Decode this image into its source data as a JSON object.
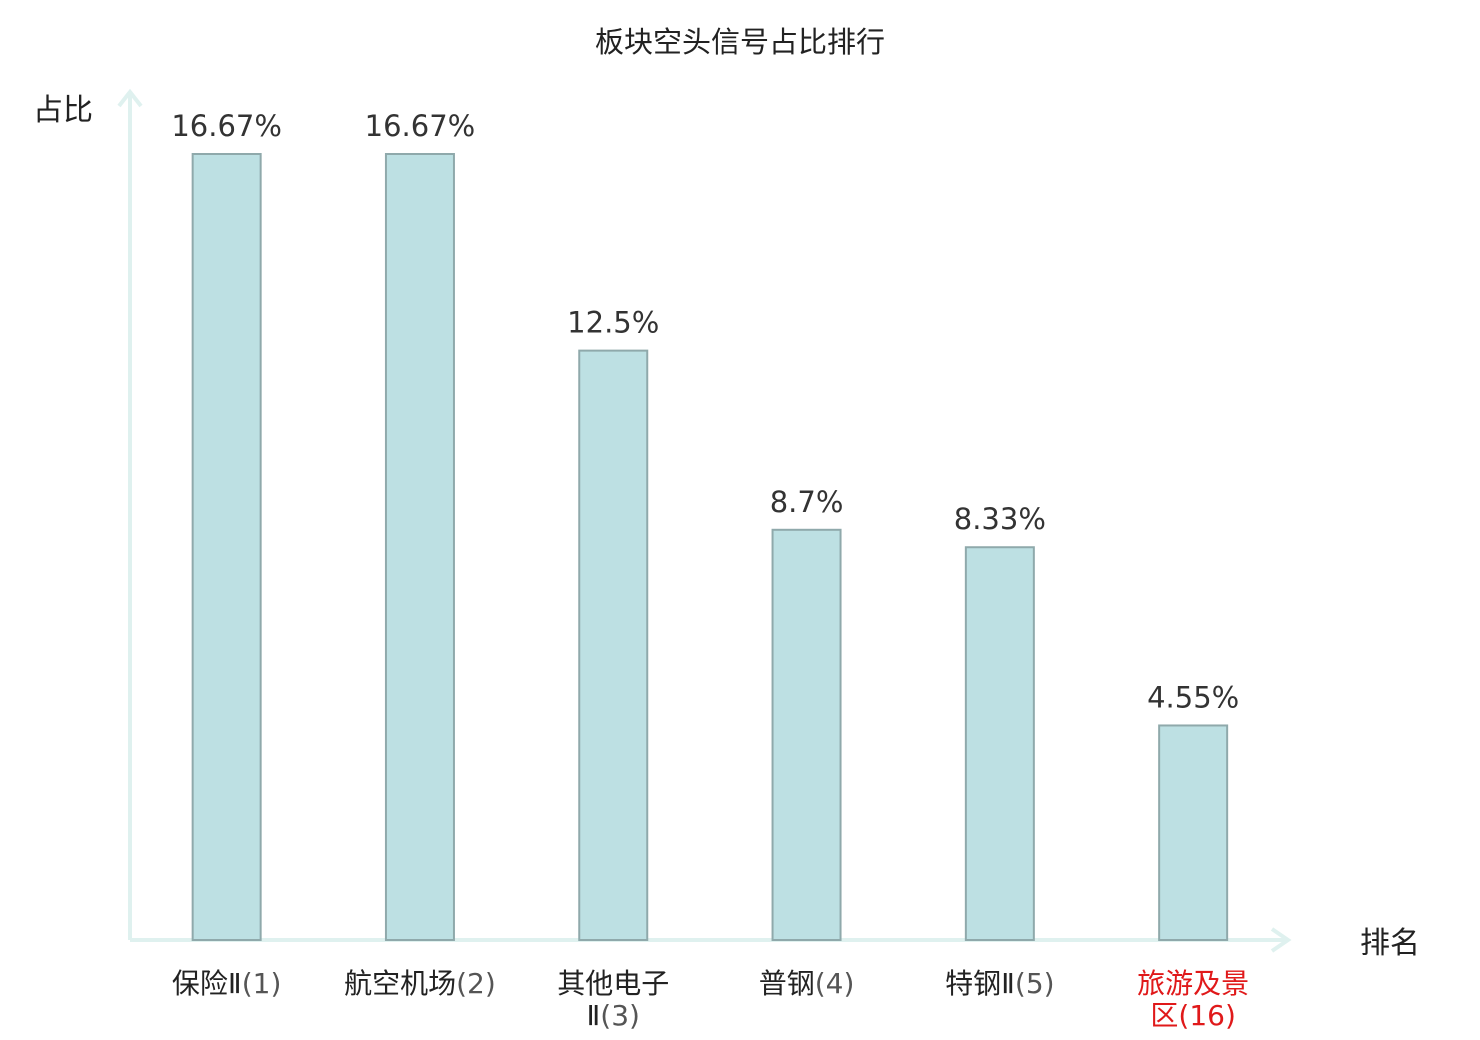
{
  "chart_data": {
    "type": "bar",
    "title": "板块空头信号占比排行",
    "ylabel": "占比",
    "xlabel": "排名",
    "categories": [
      {
        "name": "保险Ⅱ",
        "rank": "(1)",
        "lines": [
          "保险Ⅱ(1)"
        ]
      },
      {
        "name": "航空机场",
        "rank": "(2)",
        "lines": [
          "航空机场(2)"
        ]
      },
      {
        "name": "其他电子Ⅱ",
        "rank": "(3)",
        "lines": [
          "其他电子",
          "Ⅱ(3)"
        ]
      },
      {
        "name": "普钢",
        "rank": "(4)",
        "lines": [
          "普钢(4)"
        ]
      },
      {
        "name": "特钢Ⅱ",
        "rank": "(5)",
        "lines": [
          "特钢Ⅱ(5)"
        ]
      },
      {
        "name": "旅游及景区",
        "rank": "(16)",
        "lines": [
          "旅游及景",
          "区(16)"
        ],
        "highlight": true
      }
    ],
    "values": [
      16.67,
      16.67,
      12.5,
      8.7,
      8.33,
      4.55
    ],
    "value_labels": [
      "16.67%",
      "16.67%",
      "12.5%",
      "8.7%",
      "8.33%",
      "4.55%"
    ],
    "ylim": [
      0,
      16.67
    ],
    "grid": false,
    "colors": {
      "bar_fill": "#bde0e3",
      "bar_stroke": "#8fa9ab",
      "axis": "#dff1ef",
      "highlight_text": "#e0191a"
    }
  }
}
